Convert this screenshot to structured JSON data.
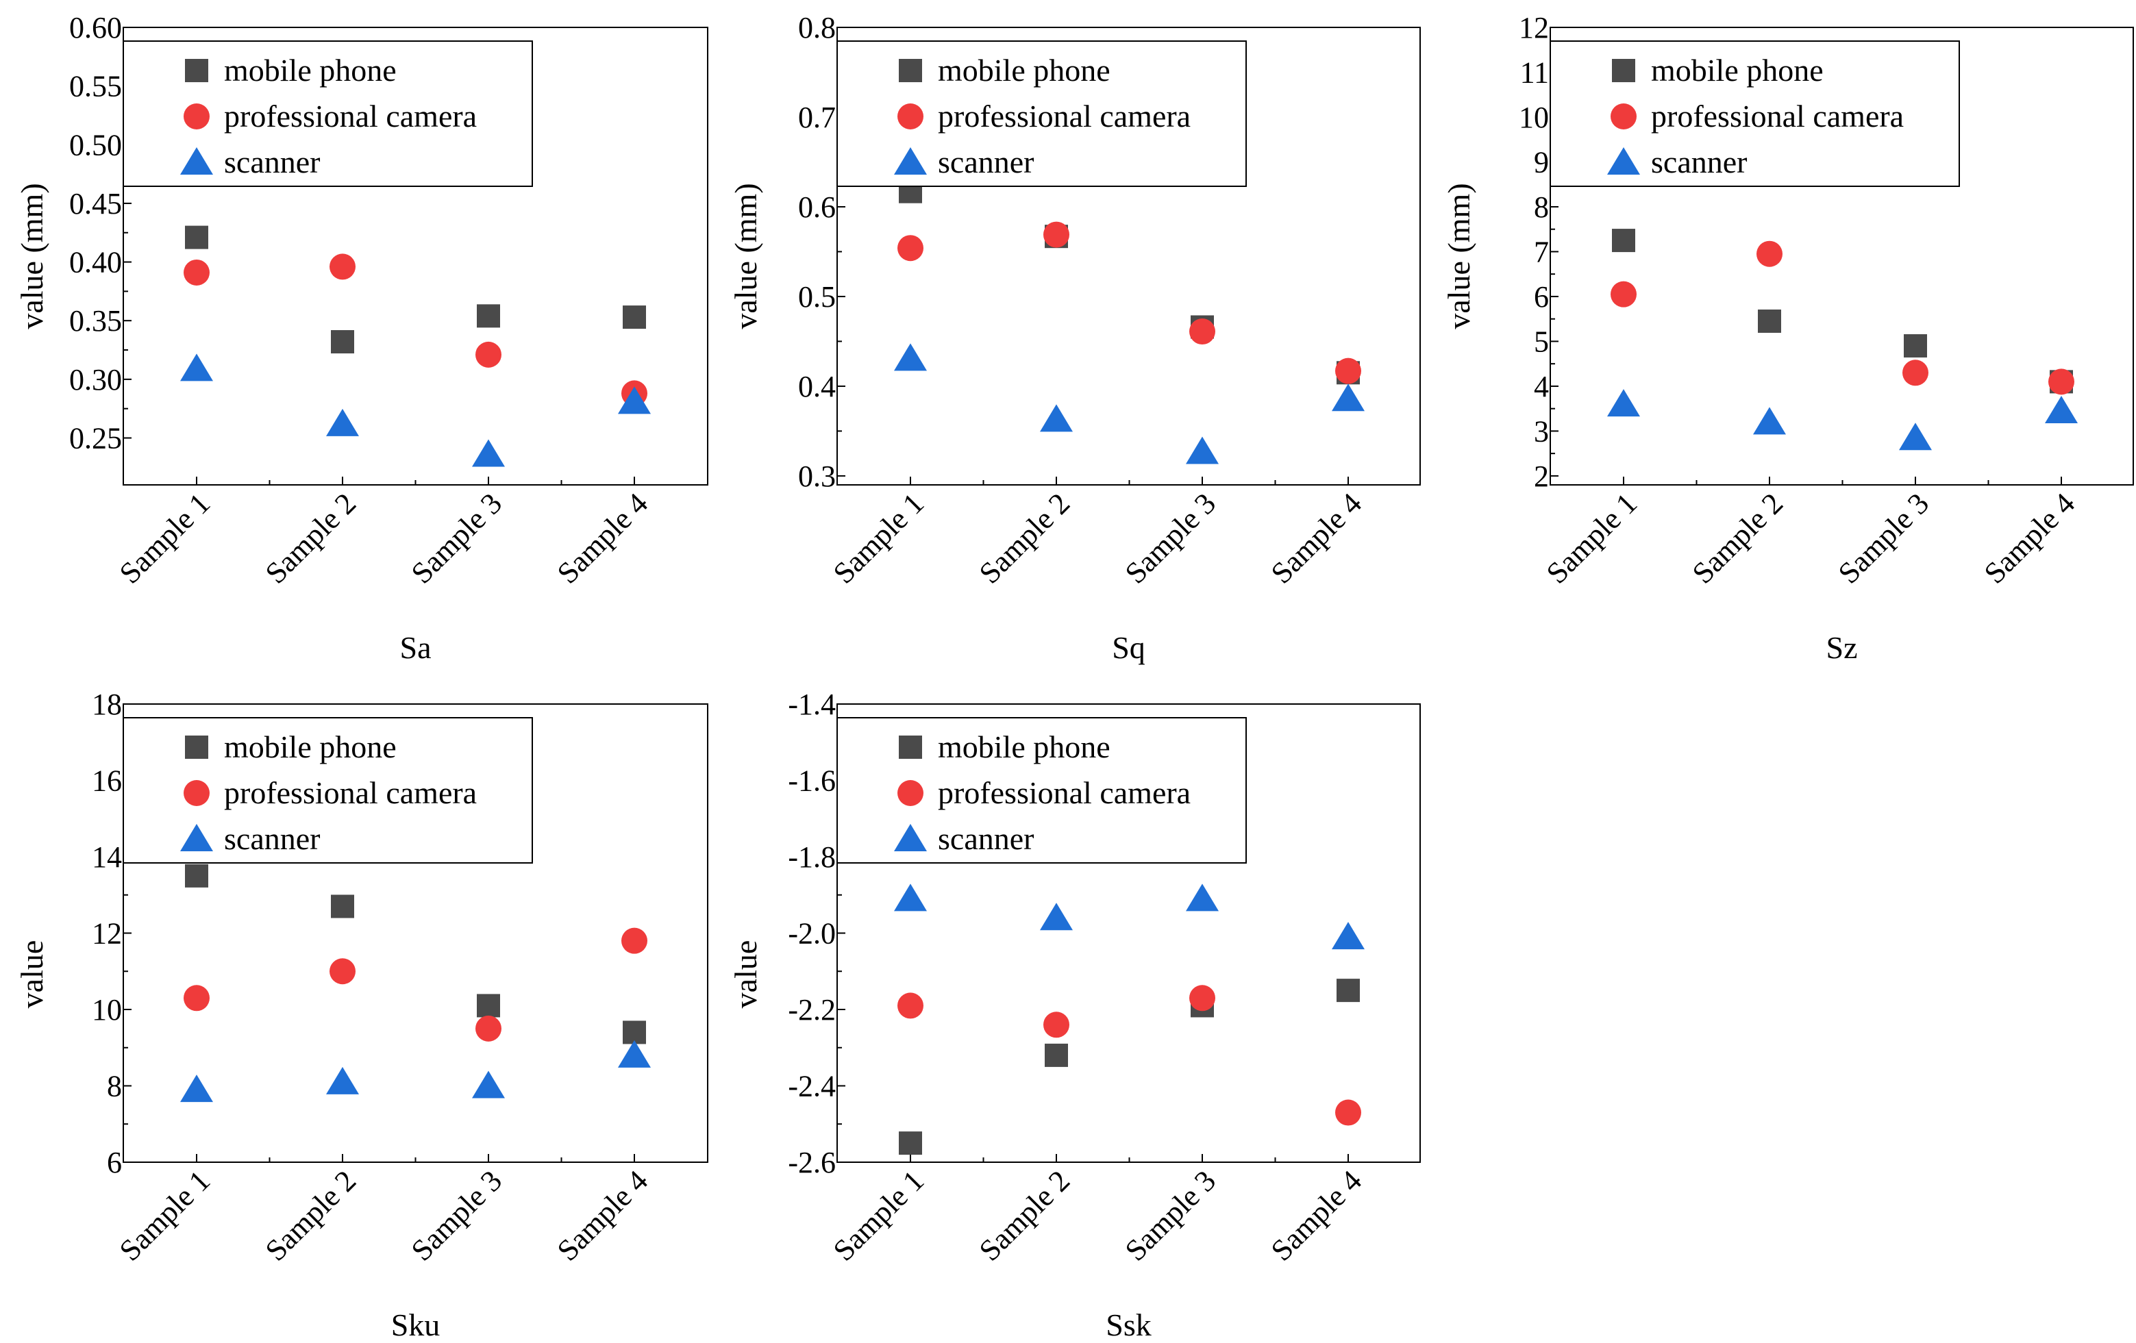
{
  "colors": {
    "mobile_phone": "#4a4a4a",
    "professional_camera": "#ef3b3b",
    "scanner": "#1f6fd6",
    "axis": "#000000",
    "background": "#ffffff"
  },
  "chart_data": [
    {
      "type": "scatter",
      "title": "Sa",
      "xlabel": "Sa",
      "ylabel": "value (mm)",
      "categories": [
        "Sample 1",
        "Sample 2",
        "Sample 3",
        "Sample 4"
      ],
      "ylim": [
        0.21,
        0.6
      ],
      "yticks": [
        0.25,
        0.3,
        0.35,
        0.4,
        0.45,
        0.5,
        0.55,
        0.6
      ],
      "ytick_labels": [
        "0.25",
        "0.30",
        "0.35",
        "0.40",
        "0.45",
        "0.50",
        "0.55",
        "0.60"
      ],
      "legend": "top-left",
      "series": [
        {
          "name": "mobile phone",
          "marker": "square",
          "color": "#4a4a4a",
          "values": [
            0.421,
            0.332,
            0.354,
            0.353
          ]
        },
        {
          "name": "professional camera",
          "marker": "circle",
          "color": "#ef3b3b",
          "values": [
            0.391,
            0.396,
            0.321,
            0.288
          ]
        },
        {
          "name": "scanner",
          "marker": "triangle",
          "color": "#1f6fd6",
          "values": [
            0.309,
            0.262,
            0.236,
            0.281
          ]
        }
      ]
    },
    {
      "type": "scatter",
      "title": "Sq",
      "xlabel": "Sq",
      "ylabel": "value (mm)",
      "categories": [
        "Sample 1",
        "Sample 2",
        "Sample 3",
        "Sample 4"
      ],
      "ylim": [
        0.29,
        0.8
      ],
      "yticks": [
        0.3,
        0.4,
        0.5,
        0.6,
        0.7,
        0.8
      ],
      "ytick_labels": [
        "0.3",
        "0.4",
        "0.5",
        "0.6",
        "0.7",
        "0.8"
      ],
      "legend": "top-left",
      "series": [
        {
          "name": "mobile phone",
          "marker": "square",
          "color": "#4a4a4a",
          "values": [
            0.617,
            0.567,
            0.466,
            0.415
          ]
        },
        {
          "name": "professional camera",
          "marker": "circle",
          "color": "#ef3b3b",
          "values": [
            0.554,
            0.569,
            0.461,
            0.417
          ]
        },
        {
          "name": "scanner",
          "marker": "triangle",
          "color": "#1f6fd6",
          "values": [
            0.431,
            0.363,
            0.327,
            0.386
          ]
        }
      ]
    },
    {
      "type": "scatter",
      "title": "Sz",
      "xlabel": "Sz",
      "ylabel": "value (mm)",
      "categories": [
        "Sample 1",
        "Sample 2",
        "Sample 3",
        "Sample 4"
      ],
      "ylim": [
        1.8,
        12
      ],
      "yticks": [
        2,
        3,
        4,
        5,
        6,
        7,
        8,
        9,
        10,
        11,
        12
      ],
      "ytick_labels": [
        "2",
        "3",
        "4",
        "5",
        "6",
        "7",
        "8",
        "9",
        "10",
        "11",
        "12"
      ],
      "legend": "top-left",
      "series": [
        {
          "name": "mobile phone",
          "marker": "square",
          "color": "#4a4a4a",
          "values": [
            7.25,
            5.45,
            4.9,
            4.1
          ]
        },
        {
          "name": "professional camera",
          "marker": "circle",
          "color": "#ef3b3b",
          "values": [
            6.05,
            6.95,
            4.3,
            4.1
          ]
        },
        {
          "name": "scanner",
          "marker": "triangle",
          "color": "#1f6fd6",
          "values": [
            3.6,
            3.2,
            2.85,
            3.45
          ]
        }
      ]
    },
    {
      "type": "scatter",
      "title": "Sku",
      "xlabel": "Sku",
      "ylabel": "value",
      "categories": [
        "Sample 1",
        "Sample 2",
        "Sample 3",
        "Sample 4"
      ],
      "ylim": [
        6,
        18
      ],
      "yticks": [
        6,
        8,
        10,
        12,
        14,
        16,
        18
      ],
      "ytick_labels": [
        "6",
        "8",
        "10",
        "12",
        "14",
        "16",
        "18"
      ],
      "legend": "top-left",
      "series": [
        {
          "name": "mobile phone",
          "marker": "square",
          "color": "#4a4a4a",
          "values": [
            13.5,
            12.7,
            10.1,
            9.4
          ]
        },
        {
          "name": "professional camera",
          "marker": "circle",
          "color": "#ef3b3b",
          "values": [
            10.3,
            11.0,
            9.5,
            11.8
          ]
        },
        {
          "name": "scanner",
          "marker": "triangle",
          "color": "#1f6fd6",
          "values": [
            7.9,
            8.1,
            8.0,
            8.8
          ]
        }
      ]
    },
    {
      "type": "scatter",
      "title": "Ssk",
      "xlabel": "Ssk",
      "ylabel": "value",
      "categories": [
        "Sample 1",
        "Sample 2",
        "Sample 3",
        "Sample 4"
      ],
      "ylim": [
        -2.6,
        -1.4
      ],
      "yticks": [
        -2.6,
        -2.4,
        -2.2,
        -2.0,
        -1.8,
        -1.6,
        -1.4
      ],
      "ytick_labels": [
        "-2.6",
        "-2.4",
        "-2.2",
        "-2.0",
        "-1.8",
        "-1.6",
        "-1.4"
      ],
      "legend": "top-left",
      "series": [
        {
          "name": "mobile phone",
          "marker": "square",
          "color": "#4a4a4a",
          "values": [
            -2.55,
            -2.32,
            -2.19,
            -2.15
          ]
        },
        {
          "name": "professional camera",
          "marker": "circle",
          "color": "#ef3b3b",
          "values": [
            -2.19,
            -2.24,
            -2.17,
            -2.47
          ]
        },
        {
          "name": "scanner",
          "marker": "triangle",
          "color": "#1f6fd6",
          "values": [
            -1.91,
            -1.96,
            -1.91,
            -2.01
          ]
        }
      ]
    }
  ]
}
